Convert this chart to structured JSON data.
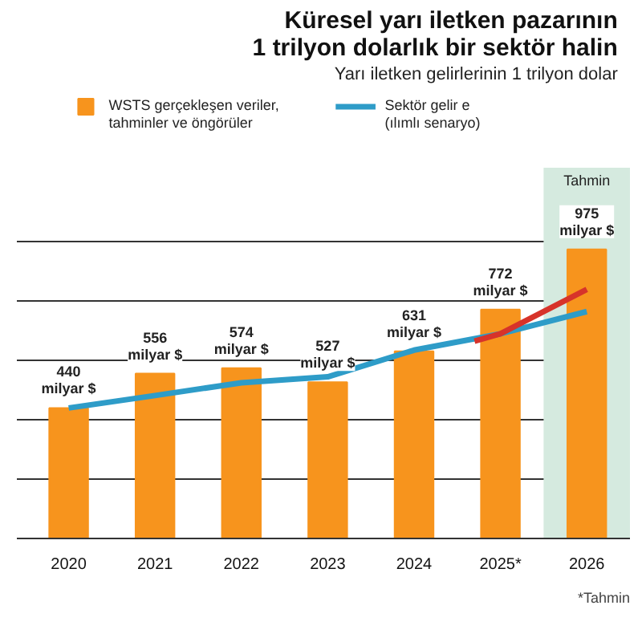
{
  "chart_data": {
    "type": "bar",
    "title": "Küresel yarı iletken pazarının\n1 trilyon dolarlık bir sektör halin",
    "subtitle": "Yarı iletken gelirlerinin 1 trilyon dolar",
    "x": [
      2020,
      2021,
      2022,
      2023,
      2024,
      2025,
      2026
    ],
    "xlim": [
      2019.4,
      2026.5
    ],
    "xticks": [
      2020,
      2021,
      2022,
      2023,
      2024,
      {
        "value": 2025,
        "label": "2025*"
      },
      2026
    ],
    "ylim": [
      0,
      1250
    ],
    "yticks": [
      {
        "value": 200,
        "label": null
      },
      {
        "value": 400,
        "label": null
      },
      {
        "value": 600,
        "label": null
      },
      {
        "value": 800,
        "label": null
      },
      {
        "value": 1000,
        "label": null
      }
    ],
    "tick_labels": "x",
    "grid": "y",
    "legend": "top",
    "series": [
      {
        "name": "WSTS gerçekleşen veriler,\ntahminler ve öngörüler",
        "color": "#f7941d",
        "values": [
          440,
          556,
          574,
          527,
          631,
          772,
          975
        ],
        "value_labels": [
          "440 milyar $",
          "556 milyar $",
          "574 milyar $",
          "527 milyar $",
          "631 milyar $",
          "772 milyar $",
          "975 milyar $"
        ]
      },
      {
        "type": "line",
        "name": "Sektör gelir e\n(ılımlı senaryo)",
        "color": "#2e9cc8",
        "values": [
          440,
          482,
          525,
          545,
          635,
          690,
          765
        ]
      },
      {
        "type": "line",
        "color": "#d7332a",
        "x": [
          2024.7,
          2025,
          2026
        ],
        "values": [
          665,
          690,
          840
        ]
      }
    ],
    "bands": [
      {
        "axis": "x",
        "from": 2025.5,
        "to": 2026.5,
        "label": "Tahmin",
        "color": "#d5eadf"
      }
    ],
    "annotations": [
      "*Tahmin"
    ]
  }
}
